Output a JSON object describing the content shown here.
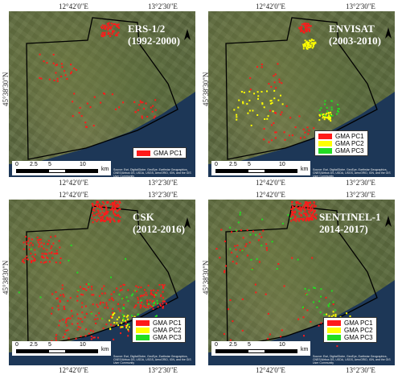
{
  "axis_labels": {
    "lon_left": "12°42'0\"E",
    "lon_right": "13°2'30\"E",
    "lat": "45°38'30\"N"
  },
  "colors": {
    "pc1": "#ff1a1a",
    "pc2": "#ffff00",
    "pc3": "#22dd22",
    "boundary": "#000000",
    "sea": "#1d3757"
  },
  "legend_labels": {
    "pc1": "GMA PC1",
    "pc2": "GMA PC2",
    "pc3": "GMA PC3"
  },
  "scale": {
    "ticks": [
      "0",
      "2.5",
      "5",
      "10"
    ],
    "unit": "km"
  },
  "credit": "Source: Esri, DigitalGlobe, GeoEye, Earthstar Geographics, CNES/Airbus DS, USDA, USGS, AeroGRID, IGN, and the GIS User Community",
  "panels": [
    {
      "id": "ers",
      "title_line1": "ERS-1/2",
      "title_line2": "(1992-2000)",
      "legend": [
        "pc1"
      ]
    },
    {
      "id": "envisat",
      "title_line1": "ENVISAT",
      "title_line2": "(2003-2010)",
      "legend": [
        "pc1",
        "pc2",
        "pc3"
      ]
    },
    {
      "id": "csk",
      "title_line1": "CSK",
      "title_line2": "(2012-2016)",
      "legend": [
        "pc1",
        "pc2",
        "pc3"
      ]
    },
    {
      "id": "sentinel",
      "title_line1": "SENTINEL-1",
      "title_line2": "2014-2017)",
      "legend": [
        "pc1",
        "pc2",
        "pc3"
      ]
    }
  ]
}
